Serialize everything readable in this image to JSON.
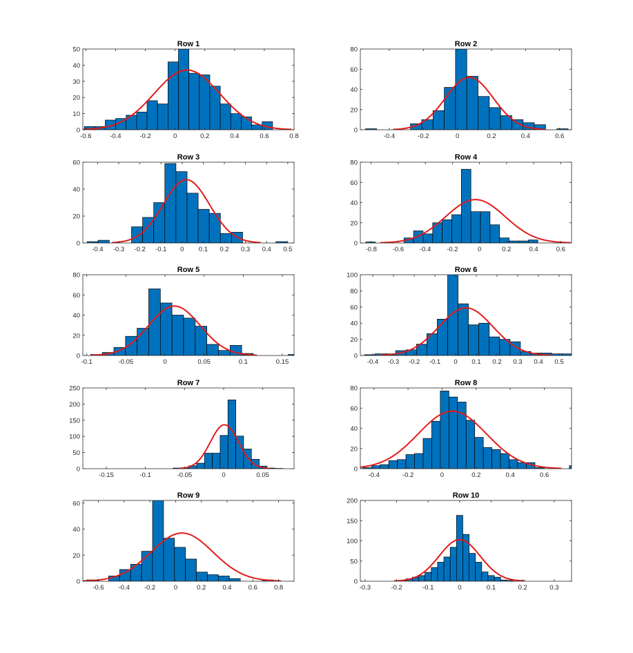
{
  "colors": {
    "bar_fill": "#0072BD",
    "bar_edge": "#000000",
    "fit_line": "#E31A1A",
    "axis": "#262626",
    "background": "#FFFFFF"
  },
  "chart_data": [
    {
      "type": "histogram",
      "title": "Row 1",
      "xlim": [
        -0.62,
        0.8
      ],
      "ylim": [
        0,
        50
      ],
      "xticks": [
        -0.6,
        -0.4,
        -0.2,
        0,
        0.2,
        0.4,
        0.6,
        0.8
      ],
      "xtick_labels": [
        "-0.6",
        "-0.4",
        "-0.2",
        "0",
        "0.2",
        "0.4",
        "0.6",
        "0.8"
      ],
      "yticks": [
        0,
        10,
        20,
        30,
        40,
        50
      ],
      "ytick_labels": [
        "0",
        "10",
        "20",
        "30",
        "40",
        "50"
      ],
      "bins": {
        "start": -0.61,
        "width": 0.0703
      },
      "counts": [
        2,
        2,
        6,
        7,
        9,
        11,
        18,
        16,
        42,
        50,
        35,
        34,
        27,
        16,
        10,
        8,
        3,
        5
      ],
      "fit": {
        "mean": 0.08,
        "sigma": 0.22,
        "peak": 37
      }
    },
    {
      "type": "histogram",
      "title": "Row 2",
      "xlim": [
        -0.57,
        0.67
      ],
      "ylim": [
        0,
        80
      ],
      "xticks": [
        -0.4,
        -0.2,
        0,
        0.2,
        0.4,
        0.6
      ],
      "xtick_labels": [
        "-0.4",
        "-0.2",
        "0",
        "0.2",
        "0.4",
        "0.6"
      ],
      "yticks": [
        0,
        20,
        40,
        60,
        80
      ],
      "ytick_labels": [
        "0",
        "20",
        "40",
        "60",
        "80"
      ],
      "bins": {
        "start": -0.54,
        "width": 0.0661
      },
      "counts": [
        1,
        0,
        0,
        0,
        6,
        10,
        19,
        42,
        80,
        53,
        33,
        22,
        14,
        10,
        7,
        5,
        0,
        1
      ],
      "fit": {
        "mean": 0.07,
        "sigma": 0.14,
        "peak": 52
      }
    },
    {
      "type": "histogram",
      "title": "Row 3",
      "xlim": [
        -0.47,
        0.53
      ],
      "ylim": [
        0,
        60
      ],
      "xticks": [
        -0.4,
        -0.3,
        -0.2,
        -0.1,
        0,
        0.1,
        0.2,
        0.3,
        0.4,
        0.5
      ],
      "xtick_labels": [
        "-0.4",
        "-0.3",
        "-0.2",
        "-0.1",
        "0",
        "0.1",
        "0.2",
        "0.3",
        "0.4",
        "0.5"
      ],
      "yticks": [
        0,
        20,
        40,
        60
      ],
      "ytick_labels": [
        "0",
        "20",
        "40",
        "60"
      ],
      "bins": {
        "start": -0.45,
        "width": 0.0526
      },
      "counts": [
        1,
        2,
        0,
        0,
        12,
        19,
        30,
        59,
        53,
        37,
        25,
        22,
        7,
        8,
        0,
        0,
        0,
        1
      ],
      "fit": {
        "mean": 0.02,
        "sigma": 0.11,
        "peak": 47
      }
    },
    {
      "type": "histogram",
      "title": "Row 4",
      "xlim": [
        -0.88,
        0.68
      ],
      "ylim": [
        0,
        80
      ],
      "xticks": [
        -0.8,
        -0.6,
        -0.4,
        -0.2,
        0,
        0.2,
        0.4,
        0.6
      ],
      "xtick_labels": [
        "-0.8",
        "-0.6",
        "-0.4",
        "-0.2",
        "0",
        "0.2",
        "0.4",
        "0.6"
      ],
      "yticks": [
        0,
        20,
        40,
        60,
        80
      ],
      "ytick_labels": [
        "0",
        "20",
        "40",
        "60",
        "80"
      ],
      "bins": {
        "start": -0.84,
        "width": 0.0706
      },
      "counts": [
        1,
        0,
        0,
        0,
        5,
        12,
        9,
        20,
        23,
        28,
        73,
        31,
        31,
        18,
        5,
        2,
        2,
        3
      ],
      "fit": {
        "mean": -0.03,
        "sigma": 0.22,
        "peak": 43
      }
    },
    {
      "type": "histogram",
      "title": "Row 5",
      "xlim": [
        -0.105,
        0.165
      ],
      "ylim": [
        0,
        80
      ],
      "xticks": [
        -0.1,
        -0.05,
        0,
        0.05,
        0.1,
        0.15
      ],
      "xtick_labels": [
        "-0.1",
        "-0.05",
        "0",
        "0.05",
        "0.1",
        "0.15"
      ],
      "yticks": [
        0,
        20,
        40,
        60,
        80
      ],
      "ytick_labels": [
        "0",
        "20",
        "40",
        "60",
        "80"
      ],
      "bins": {
        "start": -0.095,
        "width": 0.01485
      },
      "counts": [
        1,
        3,
        8,
        19,
        27,
        66,
        52,
        40,
        37,
        29,
        11,
        5,
        10,
        2,
        0,
        0,
        0,
        1
      ],
      "fit": {
        "mean": 0.012,
        "sigma": 0.033,
        "peak": 49
      }
    },
    {
      "type": "histogram",
      "title": "Row 6",
      "xlim": [
        -0.46,
        0.56
      ],
      "ylim": [
        0,
        100
      ],
      "xticks": [
        -0.4,
        -0.3,
        -0.2,
        -0.1,
        0,
        0.1,
        0.2,
        0.3,
        0.4,
        0.5
      ],
      "xtick_labels": [
        "-0.4",
        "-0.3",
        "-0.2",
        "-0.1",
        "0",
        "0.1",
        "0.2",
        "0.3",
        "0.4",
        "0.5"
      ],
      "yticks": [
        0,
        20,
        40,
        60,
        80,
        100
      ],
      "ytick_labels": [
        "0",
        "20",
        "40",
        "60",
        "80",
        "100"
      ],
      "bins": {
        "start": -0.44,
        "width": 0.0502
      },
      "counts": [
        1,
        2,
        2,
        6,
        7,
        14,
        27,
        45,
        101,
        64,
        38,
        40,
        23,
        20,
        17,
        5,
        3,
        3,
        2,
        2
      ],
      "fit": {
        "mean": 0.05,
        "sigma": 0.13,
        "peak": 59
      }
    },
    {
      "type": "histogram",
      "title": "Row 7",
      "xlim": [
        -0.18,
        0.09
      ],
      "ylim": [
        0,
        250
      ],
      "xticks": [
        -0.15,
        -0.1,
        -0.05,
        0,
        0.05
      ],
      "xtick_labels": [
        "-0.15",
        "-0.1",
        "-0.05",
        "0",
        "0.05"
      ],
      "yticks": [
        0,
        50,
        100,
        150,
        200,
        250
      ],
      "ytick_labels": [
        "0",
        "50",
        "100",
        "150",
        "200",
        "250"
      ],
      "bins": {
        "start": -0.0645,
        "width": 0.01
      },
      "counts": [
        2,
        3,
        9,
        17,
        48,
        48,
        103,
        213,
        101,
        61,
        29,
        8,
        2,
        1
      ],
      "fit": {
        "mean": 0.001,
        "sigma": 0.018,
        "peak": 136
      }
    },
    {
      "type": "histogram",
      "title": "Row 8",
      "xlim": [
        -0.48,
        0.76
      ],
      "ylim": [
        0,
        80
      ],
      "xticks": [
        -0.4,
        -0.2,
        0,
        0.2,
        0.4,
        0.6
      ],
      "xtick_labels": [
        "-0.4",
        "-0.2",
        "0",
        "0.2",
        "0.4",
        "0.6"
      ],
      "yticks": [
        0,
        20,
        40,
        60,
        80
      ],
      "ytick_labels": [
        "0",
        "20",
        "40",
        "60",
        "80"
      ],
      "bins": {
        "start": -0.465,
        "width": 0.0505
      },
      "counts": [
        1,
        3,
        4,
        8,
        9,
        14,
        15,
        30,
        47,
        77,
        71,
        66,
        48,
        31,
        21,
        19,
        15,
        9,
        6,
        6,
        1,
        0,
        0,
        0,
        3
      ],
      "fit": {
        "mean": 0.06,
        "sigma": 0.2,
        "peak": 57
      }
    },
    {
      "type": "histogram",
      "title": "Row 9",
      "xlim": [
        -0.72,
        0.92
      ],
      "ylim": [
        0,
        62
      ],
      "xticks": [
        -0.6,
        -0.4,
        -0.2,
        0,
        0.2,
        0.4,
        0.6,
        0.8
      ],
      "xtick_labels": [
        "-0.6",
        "-0.4",
        "-0.2",
        "0",
        "0.2",
        "0.4",
        "0.6",
        "0.8"
      ],
      "yticks": [
        0,
        20,
        40,
        60
      ],
      "ytick_labels": [
        "0",
        "20",
        "40",
        "60"
      ],
      "bins": {
        "start": -0.69,
        "width": 0.0852
      },
      "counts": [
        1,
        0,
        4,
        9,
        13,
        23,
        63,
        33,
        26,
        17,
        7,
        5,
        4,
        2,
        0,
        0,
        1
      ],
      "fit": {
        "mean": 0.05,
        "sigma": 0.24,
        "peak": 37
      }
    },
    {
      "type": "histogram",
      "title": "Row 10",
      "xlim": [
        -0.315,
        0.355
      ],
      "ylim": [
        0,
        200
      ],
      "xticks": [
        -0.3,
        -0.2,
        -0.1,
        0,
        0.1,
        0.2,
        0.3
      ],
      "xtick_labels": [
        "-0.3",
        "-0.2",
        "-0.1",
        "0",
        "0.1",
        "0.2",
        "0.3"
      ],
      "yticks": [
        0,
        50,
        100,
        150,
        200
      ],
      "ytick_labels": [
        "0",
        "50",
        "100",
        "150",
        "200"
      ],
      "bins": {
        "start": -0.19,
        "width": 0.02
      },
      "counts": [
        2,
        6,
        10,
        14,
        22,
        34,
        47,
        60,
        84,
        163,
        116,
        69,
        47,
        23,
        14,
        10,
        3,
        2
      ],
      "fit": {
        "mean": 0.0,
        "sigma": 0.065,
        "peak": 103
      }
    }
  ]
}
